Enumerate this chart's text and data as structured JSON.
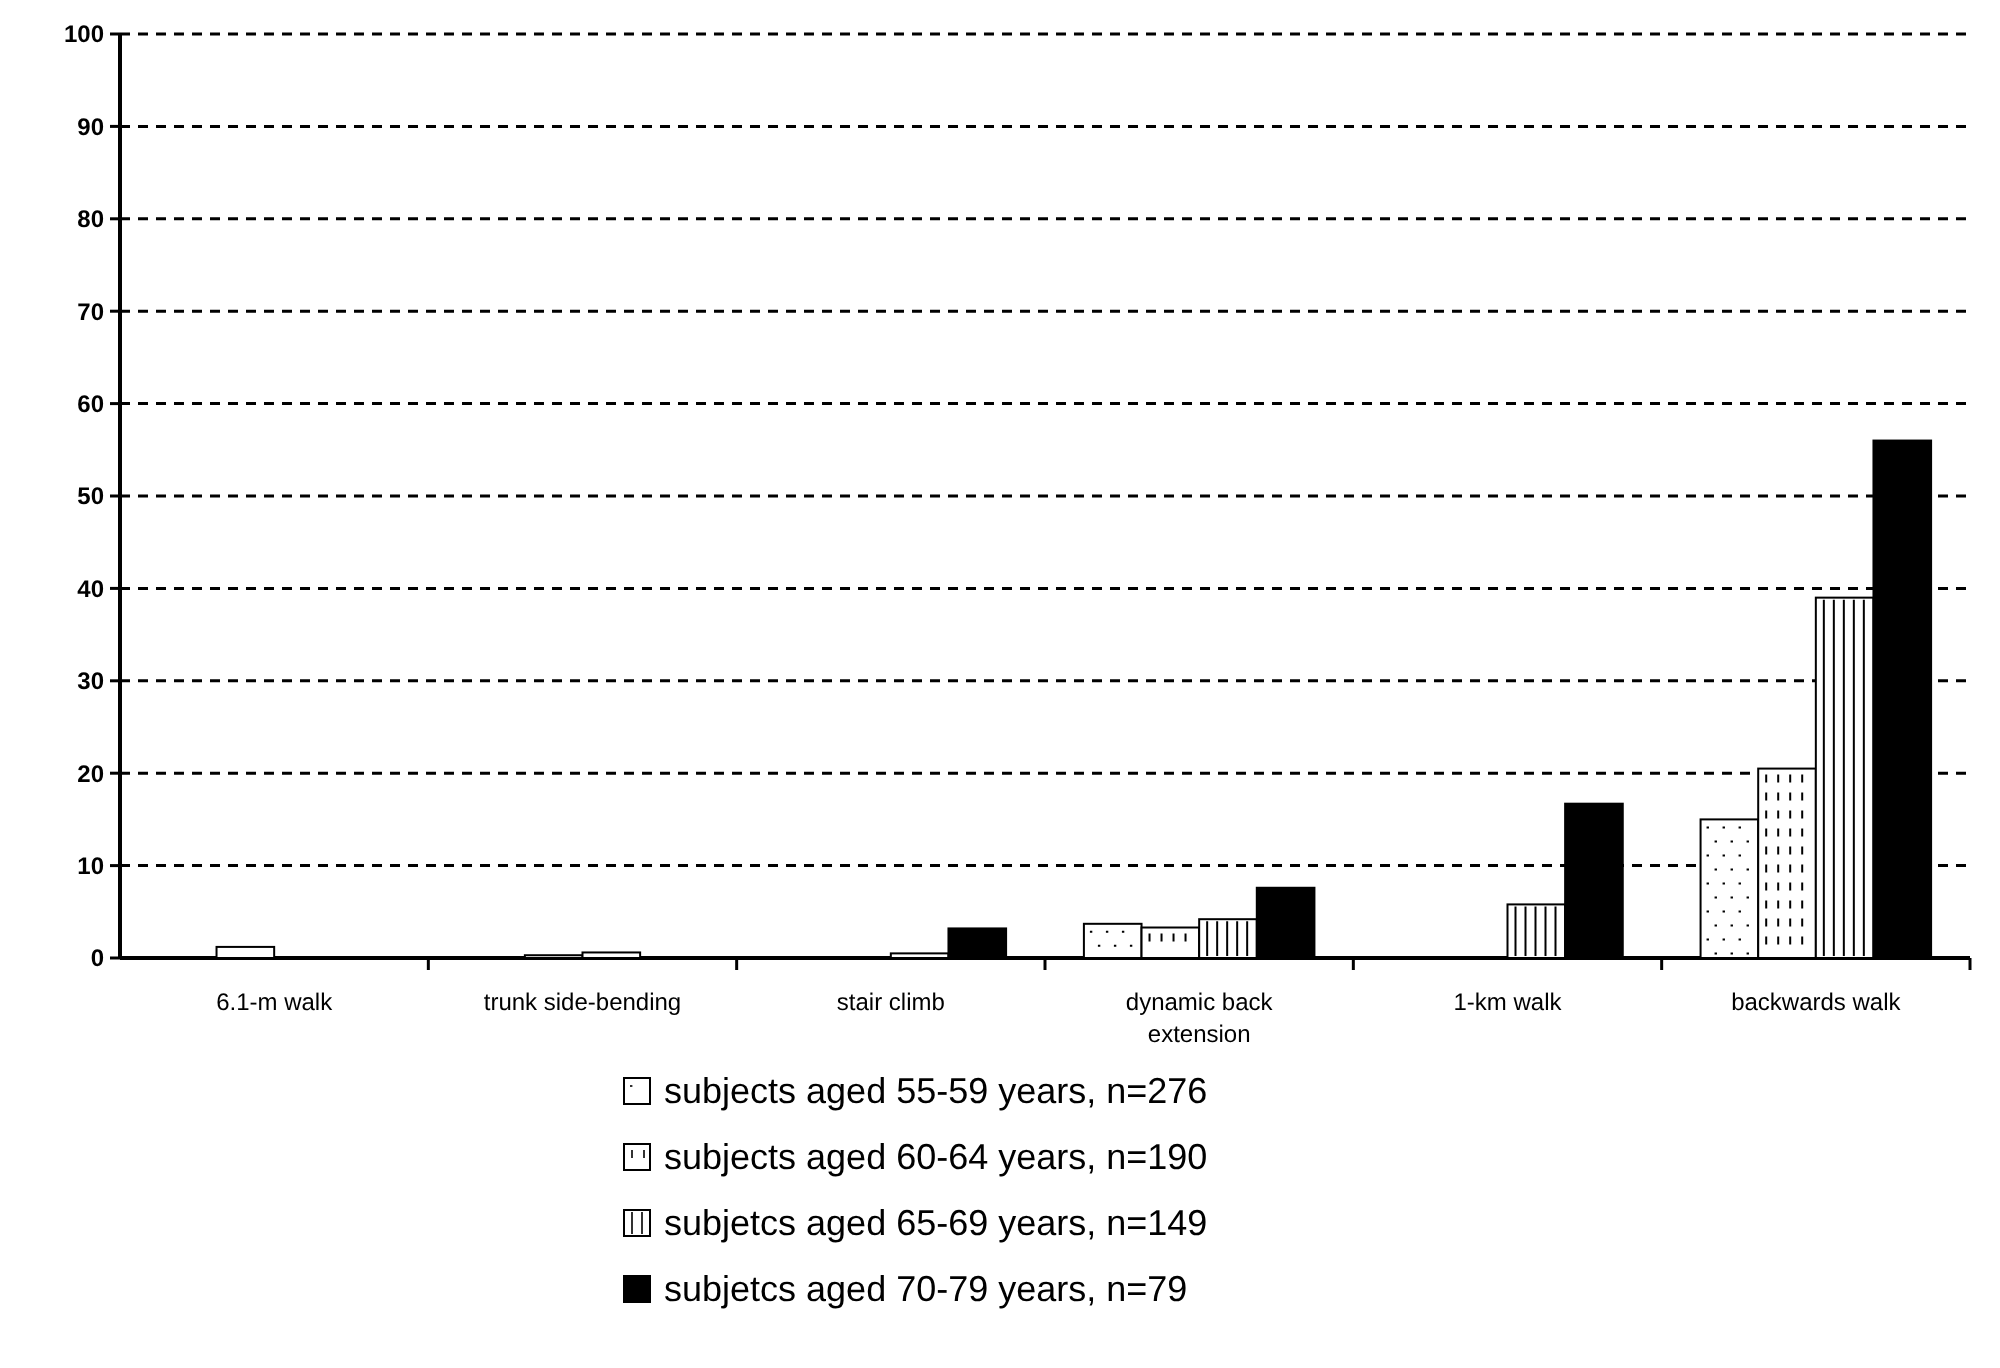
{
  "chart_data": {
    "type": "bar",
    "categories": [
      "6.1-m walk",
      "trunk side-bending",
      "stair climb",
      "dynamic back extension",
      "1-km walk",
      "backwards walk"
    ],
    "series": [
      {
        "name": "subjects aged 55-59 years, n=276",
        "color": "#ffffff",
        "values": [
          null,
          null,
          null,
          3.7,
          null,
          15
        ]
      },
      {
        "name": "subjects aged 60-64 years, n=190",
        "color": "#ffffff",
        "values": [
          1.2,
          0.3,
          null,
          3.3,
          null,
          20.5
        ]
      },
      {
        "name": "subjetcs aged 65-69 years, n=149",
        "color": "#ffffff",
        "values": [
          null,
          0.6,
          0.5,
          4.2,
          5.8,
          39
        ]
      },
      {
        "name": "subjetcs aged 70-79 years, n=79",
        "color": "#000000",
        "values": [
          null,
          null,
          3.2,
          7.6,
          16.7,
          56
        ]
      }
    ],
    "ylim": [
      0,
      100
    ],
    "yticks": [
      0,
      10,
      20,
      30,
      40,
      50,
      60,
      70,
      80,
      90,
      100
    ],
    "grid": "y",
    "legend": "bottom"
  }
}
